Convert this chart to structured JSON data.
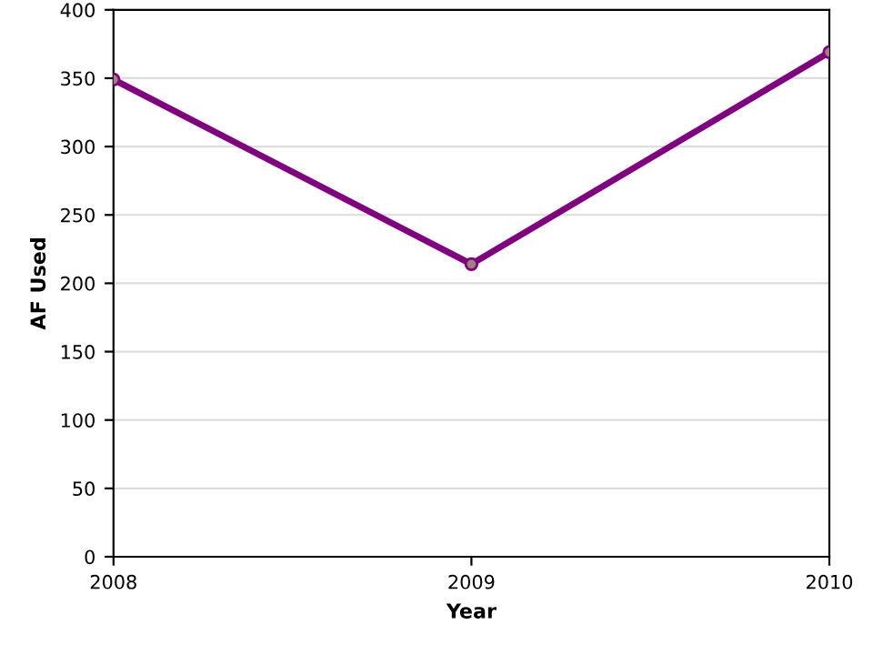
{
  "chart_data": {
    "type": "line",
    "xlabel": "Year",
    "ylabel": "AF Used",
    "x": [
      2008,
      2009,
      2010
    ],
    "series": [
      {
        "color": "#800080",
        "values": [
          349,
          214,
          369
        ]
      }
    ],
    "xlim": [
      2008,
      2010
    ],
    "xticks": [
      2008,
      2009,
      2010
    ],
    "ylim": [
      0,
      400
    ],
    "yticks": [
      0,
      50,
      100,
      150,
      200,
      250,
      300,
      350,
      400
    ],
    "grid": "y",
    "marker": "circle",
    "line_style": "solid",
    "legend": false
  }
}
